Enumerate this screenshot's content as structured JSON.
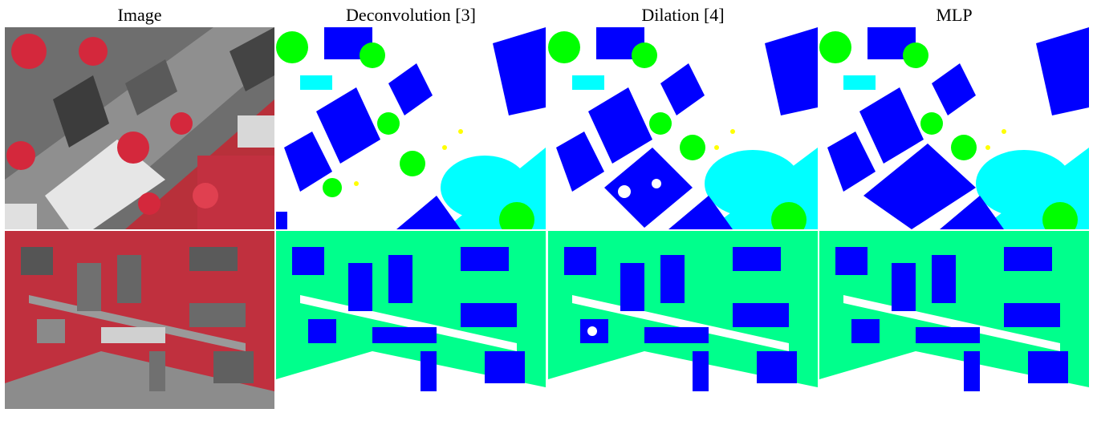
{
  "columns": [
    {
      "title": "Image"
    },
    {
      "title": "Deconvolution [3]"
    },
    {
      "title": "Dilation [4]"
    },
    {
      "title": "MLP"
    }
  ],
  "colors": {
    "impervious_surface": "#ffffff",
    "building": "#0000ff",
    "low_vegetation": "#00ffff",
    "tree": "#00ff00",
    "car": "#ffff00",
    "photo_vegetation": "#d4283c",
    "photo_roof_dark": "#4a4a4a",
    "photo_roof_light": "#e6e6e6",
    "photo_road": "#8f8f8f"
  },
  "rows": [
    {
      "name": "row-1"
    },
    {
      "name": "row-2"
    }
  ]
}
